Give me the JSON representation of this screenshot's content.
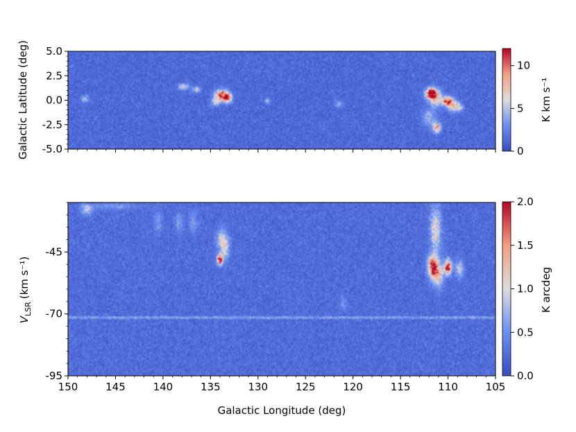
{
  "chart_data": [
    {
      "type": "heatmap",
      "title": "",
      "xlabel": "",
      "ylabel": "Galactic Latitude (deg)",
      "xlim": [
        150,
        105
      ],
      "ylim": [
        -5.0,
        5.0
      ],
      "xticks": [
        150,
        145,
        140,
        135,
        130,
        125,
        120,
        115,
        110,
        105
      ],
      "show_xtick_labels": false,
      "yticks": [
        {
          "value": 5.0,
          "label": "5.0"
        },
        {
          "value": 2.5,
          "label": "2.5"
        },
        {
          "value": 0.0,
          "label": "0.0"
        },
        {
          "value": -2.5,
          "label": "-2.5"
        },
        {
          "value": -5.0,
          "label": "-5.0"
        }
      ],
      "colorbar": {
        "label": "K km s⁻¹",
        "range": [
          0,
          12
        ],
        "ticks": [
          {
            "value": 0,
            "label": "0"
          },
          {
            "value": 5,
            "label": "5"
          },
          {
            "value": 10,
            "label": "10"
          }
        ]
      },
      "background_level": 1.2,
      "noise_level": 1.6,
      "features": [
        {
          "l": 148.2,
          "b": 0.1,
          "sl": 0.3,
          "sb": 0.25,
          "amp": 3.5
        },
        {
          "l": 137.8,
          "b": 1.4,
          "sl": 0.4,
          "sb": 0.2,
          "amp": 5
        },
        {
          "l": 136.5,
          "b": 1.1,
          "sl": 0.3,
          "sb": 0.2,
          "amp": 4.5
        },
        {
          "l": 133.8,
          "b": 0.5,
          "sl": 0.5,
          "sb": 0.4,
          "amp": 9
        },
        {
          "l": 133.2,
          "b": 0.2,
          "sl": 0.3,
          "sb": 0.3,
          "amp": 8
        },
        {
          "l": 134.5,
          "b": -0.2,
          "sl": 0.3,
          "sb": 0.3,
          "amp": 4
        },
        {
          "l": 129.0,
          "b": -0.1,
          "sl": 0.2,
          "sb": 0.2,
          "amp": 3
        },
        {
          "l": 121.5,
          "b": -0.4,
          "sl": 0.3,
          "sb": 0.2,
          "amp": 3
        },
        {
          "l": 111.8,
          "b": 0.7,
          "sl": 0.4,
          "sb": 0.35,
          "amp": 11
        },
        {
          "l": 111.3,
          "b": 0.2,
          "sl": 0.5,
          "sb": 0.6,
          "amp": 6
        },
        {
          "l": 110.0,
          "b": -0.1,
          "sl": 0.4,
          "sb": 0.3,
          "amp": 10
        },
        {
          "l": 109.5,
          "b": -0.6,
          "sl": 0.4,
          "sb": 0.4,
          "amp": 5
        },
        {
          "l": 111.2,
          "b": -2.8,
          "sl": 0.3,
          "sb": 0.35,
          "amp": 7
        },
        {
          "l": 112.0,
          "b": -1.8,
          "sl": 0.5,
          "sb": 0.6,
          "amp": 3
        },
        {
          "l": 108.8,
          "b": -0.7,
          "sl": 0.3,
          "sb": 0.3,
          "amp": 4
        }
      ]
    },
    {
      "type": "heatmap",
      "title": "",
      "xlabel": "Galactic Longitude (deg)",
      "ylabel_main": "V",
      "ylabel_sub": "LSR",
      "ylabel_unit": "(km s⁻¹)",
      "xlim": [
        150,
        105
      ],
      "ylim": [
        -95,
        -25
      ],
      "xticks": [
        {
          "value": 150,
          "label": "150"
        },
        {
          "value": 145,
          "label": "145"
        },
        {
          "value": 140,
          "label": "140"
        },
        {
          "value": 135,
          "label": "135"
        },
        {
          "value": 130,
          "label": "130"
        },
        {
          "value": 125,
          "label": "125"
        },
        {
          "value": 120,
          "label": "120"
        },
        {
          "value": 115,
          "label": "115"
        },
        {
          "value": 110,
          "label": "110"
        },
        {
          "value": 105,
          "label": "105"
        }
      ],
      "yticks": [
        {
          "value": -45,
          "label": "-45"
        },
        {
          "value": -70,
          "label": "-70"
        },
        {
          "value": -95,
          "label": "-95"
        }
      ],
      "colorbar": {
        "label": "K arcdeg",
        "range": [
          0,
          2.0
        ],
        "ticks": [
          {
            "value": 0.0,
            "label": "0.0"
          },
          {
            "value": 0.5,
            "label": "0.5"
          },
          {
            "value": 1.0,
            "label": "1.0"
          },
          {
            "value": 1.5,
            "label": "1.5"
          },
          {
            "value": 2.0,
            "label": "2.0"
          }
        ]
      },
      "background_level": 0.22,
      "noise_level": 0.28,
      "stripe": {
        "v": -71.5,
        "amp": 0.35
      },
      "features": [
        {
          "l": 148.0,
          "v": -28,
          "sl": 0.4,
          "sv": 1.5,
          "amp": 0.6
        },
        {
          "l": 145.0,
          "v": -26.5,
          "sl": 2.0,
          "sv": 1.0,
          "amp": 0.3
        },
        {
          "l": 140.5,
          "v": -33,
          "sl": 0.3,
          "sv": 3.0,
          "amp": 0.35
        },
        {
          "l": 138.3,
          "v": -33,
          "sl": 0.3,
          "sv": 3.0,
          "amp": 0.35
        },
        {
          "l": 136.8,
          "v": -33,
          "sl": 0.3,
          "sv": 3.0,
          "amp": 0.35
        },
        {
          "l": 133.8,
          "v": -40,
          "sl": 0.4,
          "sv": 3.0,
          "amp": 0.7
        },
        {
          "l": 134.0,
          "v": -48,
          "sl": 0.2,
          "sv": 1.5,
          "amp": 1.9
        },
        {
          "l": 133.4,
          "v": -44,
          "sl": 0.3,
          "sv": 3.0,
          "amp": 0.6
        },
        {
          "l": 121.0,
          "v": -66,
          "sl": 0.3,
          "sv": 2.0,
          "amp": 0.3
        },
        {
          "l": 111.3,
          "v": -36,
          "sl": 0.4,
          "sv": 7.0,
          "amp": 0.8
        },
        {
          "l": 111.6,
          "v": -51,
          "sl": 0.35,
          "sv": 3.0,
          "amp": 1.6
        },
        {
          "l": 111.0,
          "v": -54,
          "sl": 0.4,
          "sv": 3.5,
          "amp": 0.9
        },
        {
          "l": 110.0,
          "v": -51,
          "sl": 0.25,
          "sv": 2.0,
          "amp": 1.8
        },
        {
          "l": 108.8,
          "v": -52,
          "sl": 0.3,
          "sv": 2.5,
          "amp": 0.6
        }
      ]
    }
  ]
}
